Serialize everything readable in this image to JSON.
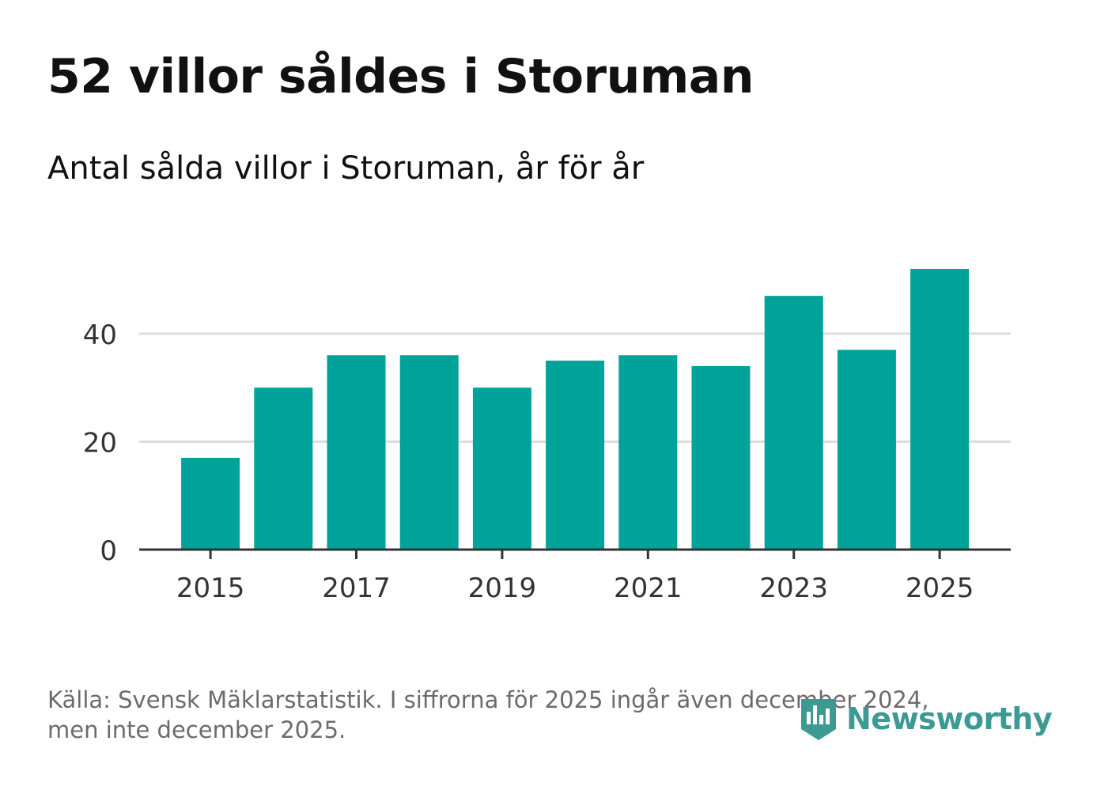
{
  "header": {
    "title": "52 villor såldes i Storuman",
    "subtitle": "Antal sålda villor i Storuman, år för år"
  },
  "footer": {
    "source_line1": "Källa: Svensk Mäklarstatistik. I siffrorna för 2025 ingår även december 2024,",
    "source_line2": "men inte december 2025.",
    "logo_text": "Newsworthy"
  },
  "colors": {
    "bar": "#00a39a",
    "grid": "#dddddd",
    "axis": "#333333",
    "logo": "#3d9a93"
  },
  "chart_data": {
    "type": "bar",
    "title": "52 villor såldes i Storuman",
    "subtitle": "Antal sålda villor i Storuman, år för år",
    "xlabel": "",
    "ylabel": "",
    "categories": [
      "2015",
      "2016",
      "2017",
      "2018",
      "2019",
      "2020",
      "2021",
      "2022",
      "2023",
      "2024",
      "2025"
    ],
    "values": [
      17,
      30,
      36,
      36,
      30,
      35,
      36,
      34,
      47,
      37,
      52
    ],
    "ylim": [
      0,
      52
    ],
    "yticks": [
      0,
      20,
      40
    ],
    "xtick_labels": [
      "2015",
      "2017",
      "2019",
      "2021",
      "2023",
      "2025"
    ],
    "grid": true
  }
}
